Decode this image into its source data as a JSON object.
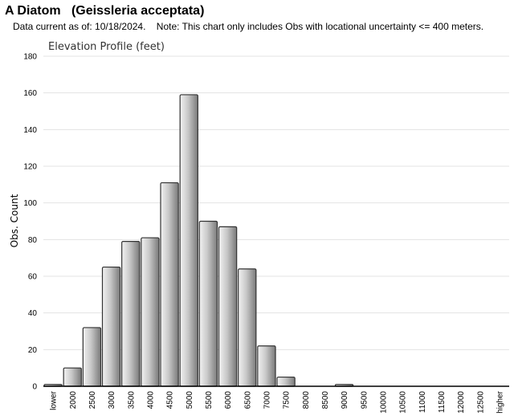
{
  "header": {
    "title": "A Diatom   (Geissleria acceptata)",
    "note": "Data current as of: 10/18/2024.    Note: This chart only includes Obs with locational uncertainty <= 400 meters."
  },
  "chart_data": {
    "type": "bar",
    "title": "Elevation Profile (feet)",
    "xlabel": "",
    "ylabel": "Obs. Count",
    "ylim": [
      0,
      180
    ],
    "yticks": [
      0,
      20,
      40,
      60,
      80,
      100,
      120,
      140,
      160,
      180
    ],
    "grid": true,
    "categories": [
      "lower",
      "2000",
      "2500",
      "3000",
      "3500",
      "4000",
      "4500",
      "5000",
      "5500",
      "6000",
      "6500",
      "7000",
      "7500",
      "8000",
      "8500",
      "9000",
      "9500",
      "10000",
      "10500",
      "11000",
      "11500",
      "12000",
      "12500",
      "higher"
    ],
    "values": [
      1,
      10,
      32,
      65,
      79,
      81,
      111,
      159,
      90,
      87,
      64,
      22,
      5,
      0,
      0,
      1,
      0,
      0,
      0,
      0,
      0,
      0,
      0,
      0
    ],
    "colors": {
      "bar_light": "#f2f2f2",
      "bar_dark": "#7a7a7a",
      "bar_stroke": "#333333",
      "grid": "#e3e3e3",
      "axis": "#000000"
    }
  }
}
